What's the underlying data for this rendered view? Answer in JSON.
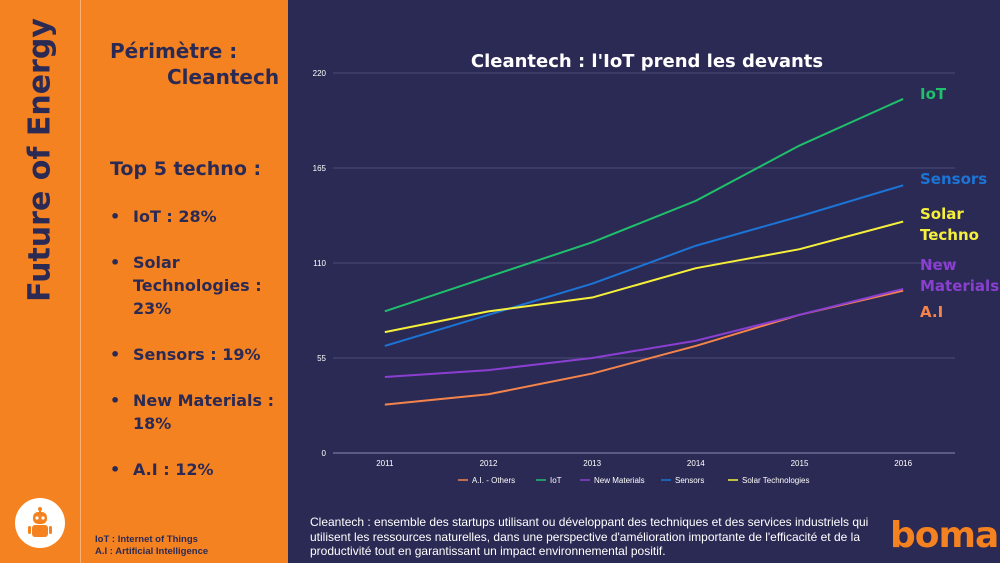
{
  "sidebar": {
    "vertical_title": "Future of Energy",
    "perimetre_label": "Périmètre :",
    "perimetre_value": "Cleantech",
    "top5_title": "Top 5 techno :",
    "items": [
      "IoT : 28%",
      "Solar Technologies : 23%",
      "Sensors : 19%",
      "New Materials : 18%",
      "A.I : 12%"
    ],
    "glossary": [
      "IoT : Internet of Things",
      "A.I : Artificial Intelligence"
    ]
  },
  "footnote": "Cleantech : ensemble des startups utilisant ou développant des techniques et des services industriels qui utilisent les ressources naturelles, dans une perspective d'amélioration importante de l'efficacité et de la productivité tout en garantissant un impact environnemental positif.",
  "logo_text": "boma",
  "colors": {
    "orange": "#f58220",
    "navy": "#2b2a54"
  },
  "chart_data": {
    "type": "line",
    "title": "Cleantech : l'IoT prend les devants",
    "x": [
      "2011",
      "2012",
      "2013",
      "2014",
      "2015",
      "2016"
    ],
    "ylim": [
      0,
      220
    ],
    "yticks": [
      0,
      55,
      110,
      165,
      220
    ],
    "grid": true,
    "legend_position": "bottom",
    "series": [
      {
        "name": "A.I. - Others",
        "color": "#f4844c",
        "values": [
          28,
          34,
          46,
          62,
          80,
          94
        ]
      },
      {
        "name": "IoT",
        "color": "#1fbf6b",
        "values": [
          82,
          102,
          122,
          146,
          178,
          205
        ]
      },
      {
        "name": "New Materials",
        "color": "#8a3fd1",
        "values": [
          44,
          48,
          55,
          65,
          80,
          95
        ]
      },
      {
        "name": "Sensors",
        "color": "#1b74d6",
        "values": [
          62,
          80,
          98,
          120,
          137,
          155
        ]
      },
      {
        "name": "Solar Technologies",
        "color": "#f6f03a",
        "values": [
          70,
          82,
          90,
          107,
          118,
          134
        ]
      }
    ],
    "end_labels": [
      {
        "text": "IoT",
        "color": "#1fbf6b"
      },
      {
        "text": "Sensors",
        "color": "#1b74d6"
      },
      {
        "text": "Solar Techno",
        "color": "#f6f03a"
      },
      {
        "text": "New Materials",
        "color": "#8a3fd1"
      },
      {
        "text": "A.I",
        "color": "#f4844c"
      }
    ]
  }
}
